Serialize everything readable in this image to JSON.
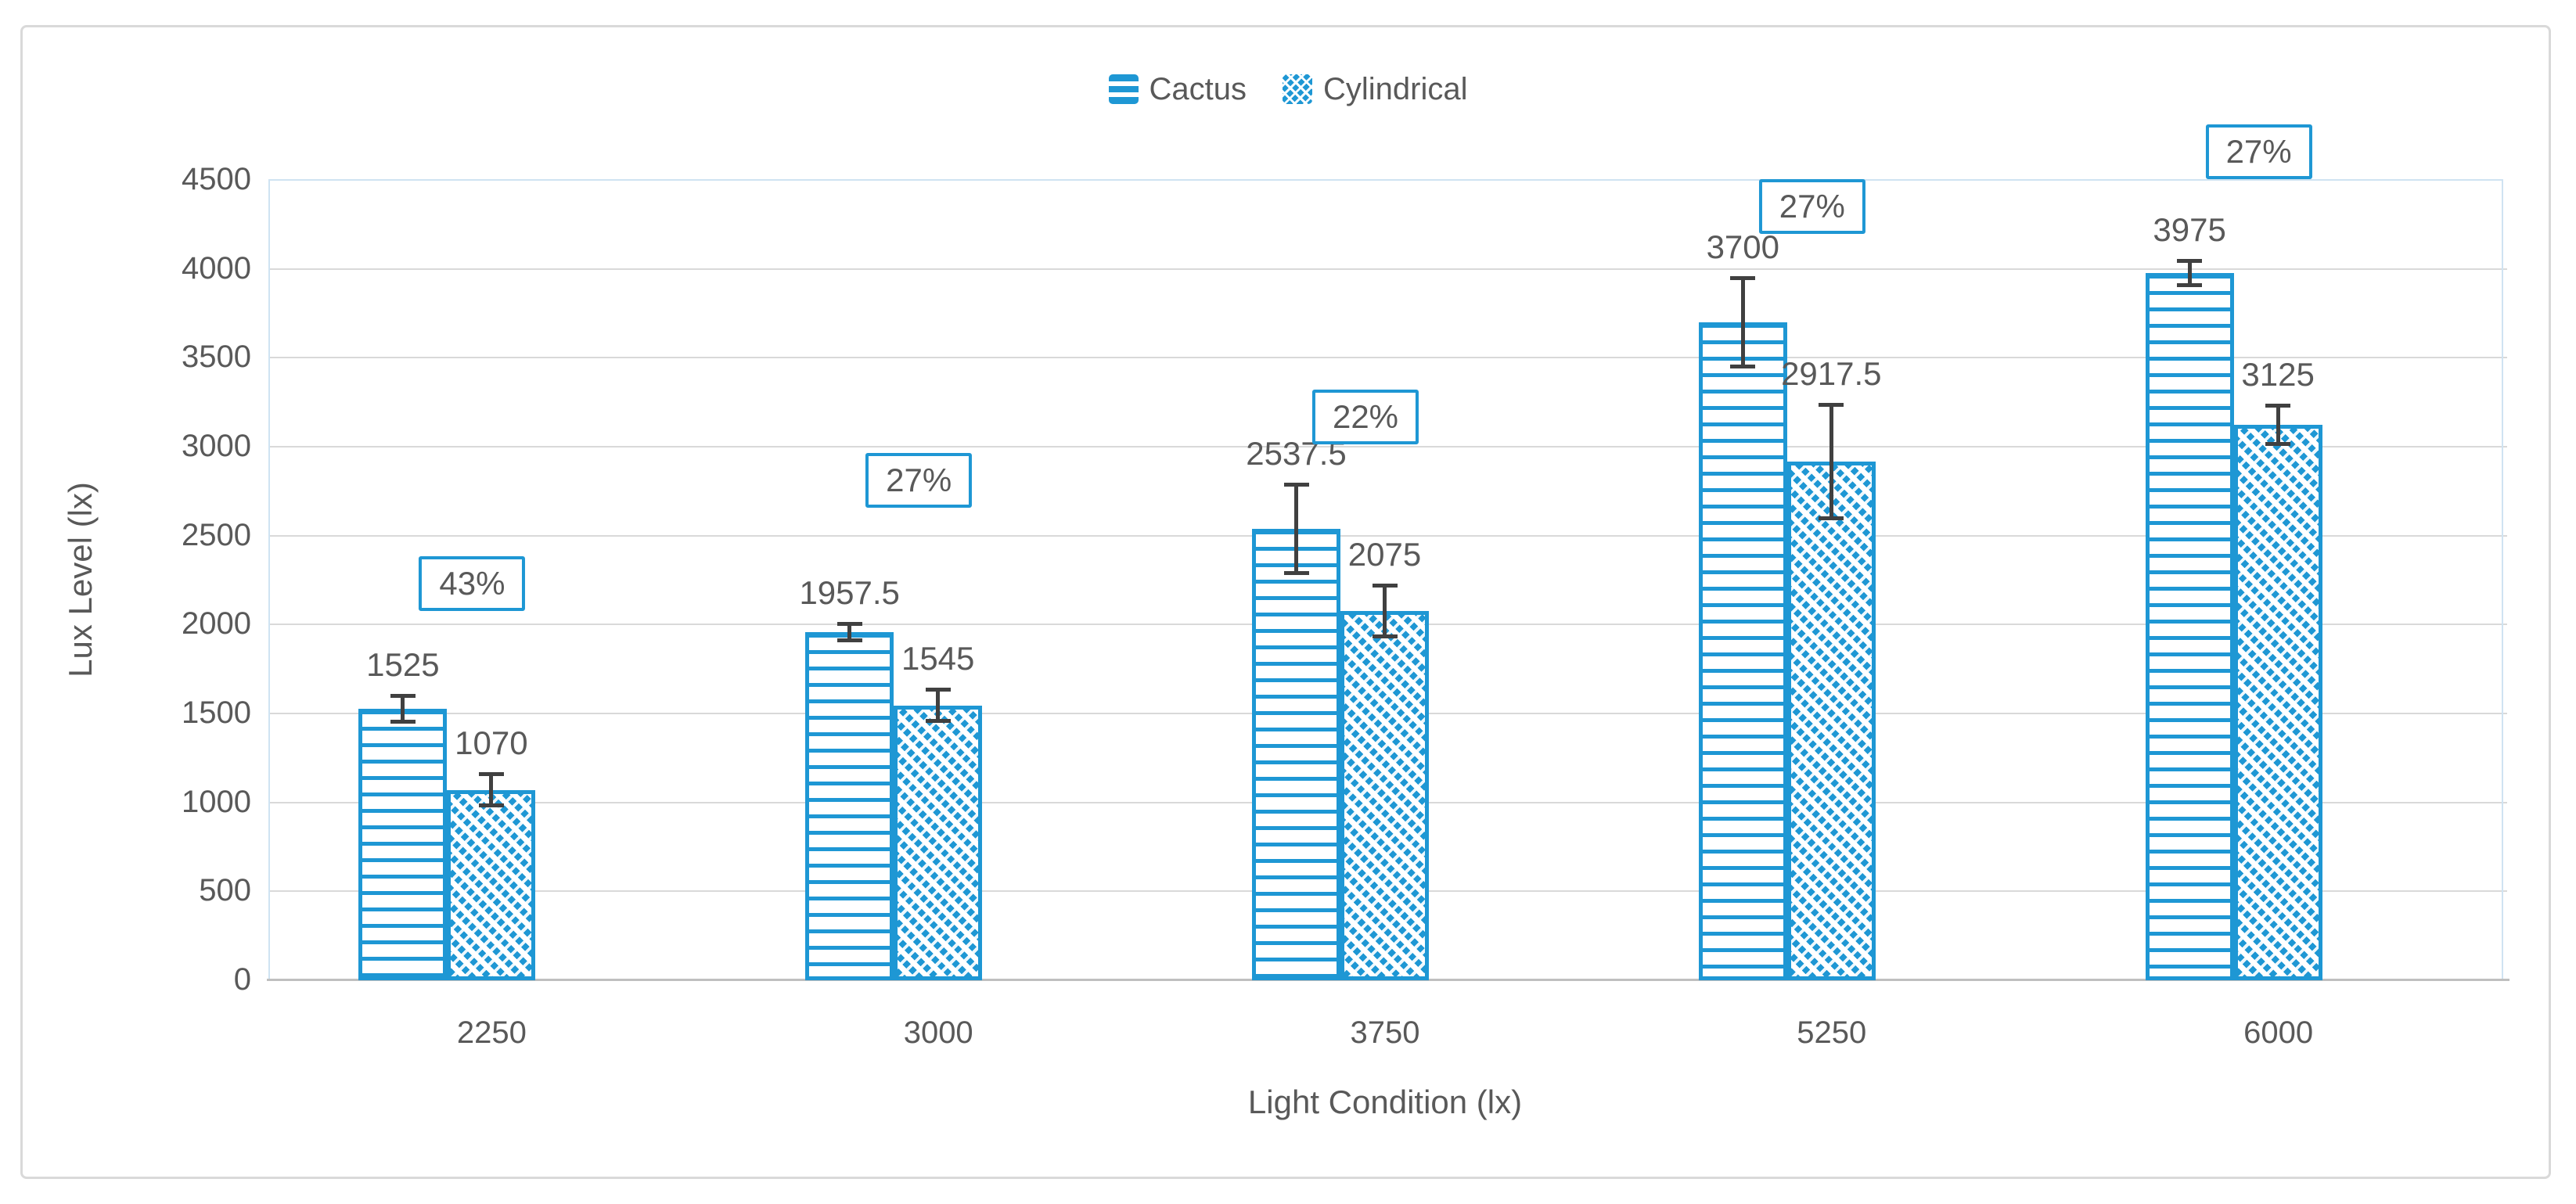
{
  "chart_data": {
    "type": "bar",
    "title": "",
    "categories": [
      "2250",
      "3000",
      "3750",
      "5250",
      "6000"
    ],
    "xlabel": "Light Condition (lx)",
    "ylabel": "Lux Level (lx)",
    "ylim": [
      0,
      4500
    ],
    "ytick_step": 500,
    "yticks": [
      "0",
      "500",
      "1000",
      "1500",
      "2000",
      "2500",
      "3000",
      "3500",
      "4000",
      "4500"
    ],
    "grid": true,
    "legend_position": "top-center",
    "series": [
      {
        "name": "Cactus",
        "pattern": "horizontal-lines",
        "values": [
          1525,
          1957.5,
          2537.5,
          3700,
          3975
        ],
        "error_bars": [
          75,
          50,
          250,
          250,
          70
        ],
        "data_labels": [
          "1525",
          "1957.5",
          "2537.5",
          "3700",
          "3975"
        ]
      },
      {
        "name": "Cylindrical",
        "pattern": "diagonal-hatch",
        "values": [
          1070,
          1545,
          2075,
          2917.5,
          3125
        ],
        "error_bars": [
          90,
          90,
          145,
          320,
          110
        ],
        "data_labels": [
          "1070",
          "1545",
          "2075",
          "2917.5",
          "3125"
        ]
      }
    ],
    "percent_labels": [
      {
        "text": "43%",
        "category": "2250",
        "center_lux": 2220
      },
      {
        "text": "27%",
        "category": "3000",
        "center_lux": 2800
      },
      {
        "text": "22%",
        "category": "3750",
        "center_lux": 3160
      },
      {
        "text": "27%",
        "category": "5250",
        "center_lux": 4340
      },
      {
        "text": "27%",
        "category": "6000",
        "center_lux": 4650
      }
    ],
    "colors": {
      "accent_blue": "#1E97D4",
      "text_gray": "#595959",
      "error_bar": "#404040",
      "gridline": "#D9D9D9",
      "axis_line": "#BFBFBF",
      "plot_border": "#CFE3F2",
      "frame_border": "#D9D9D9",
      "background": "#FFFFFF"
    }
  }
}
